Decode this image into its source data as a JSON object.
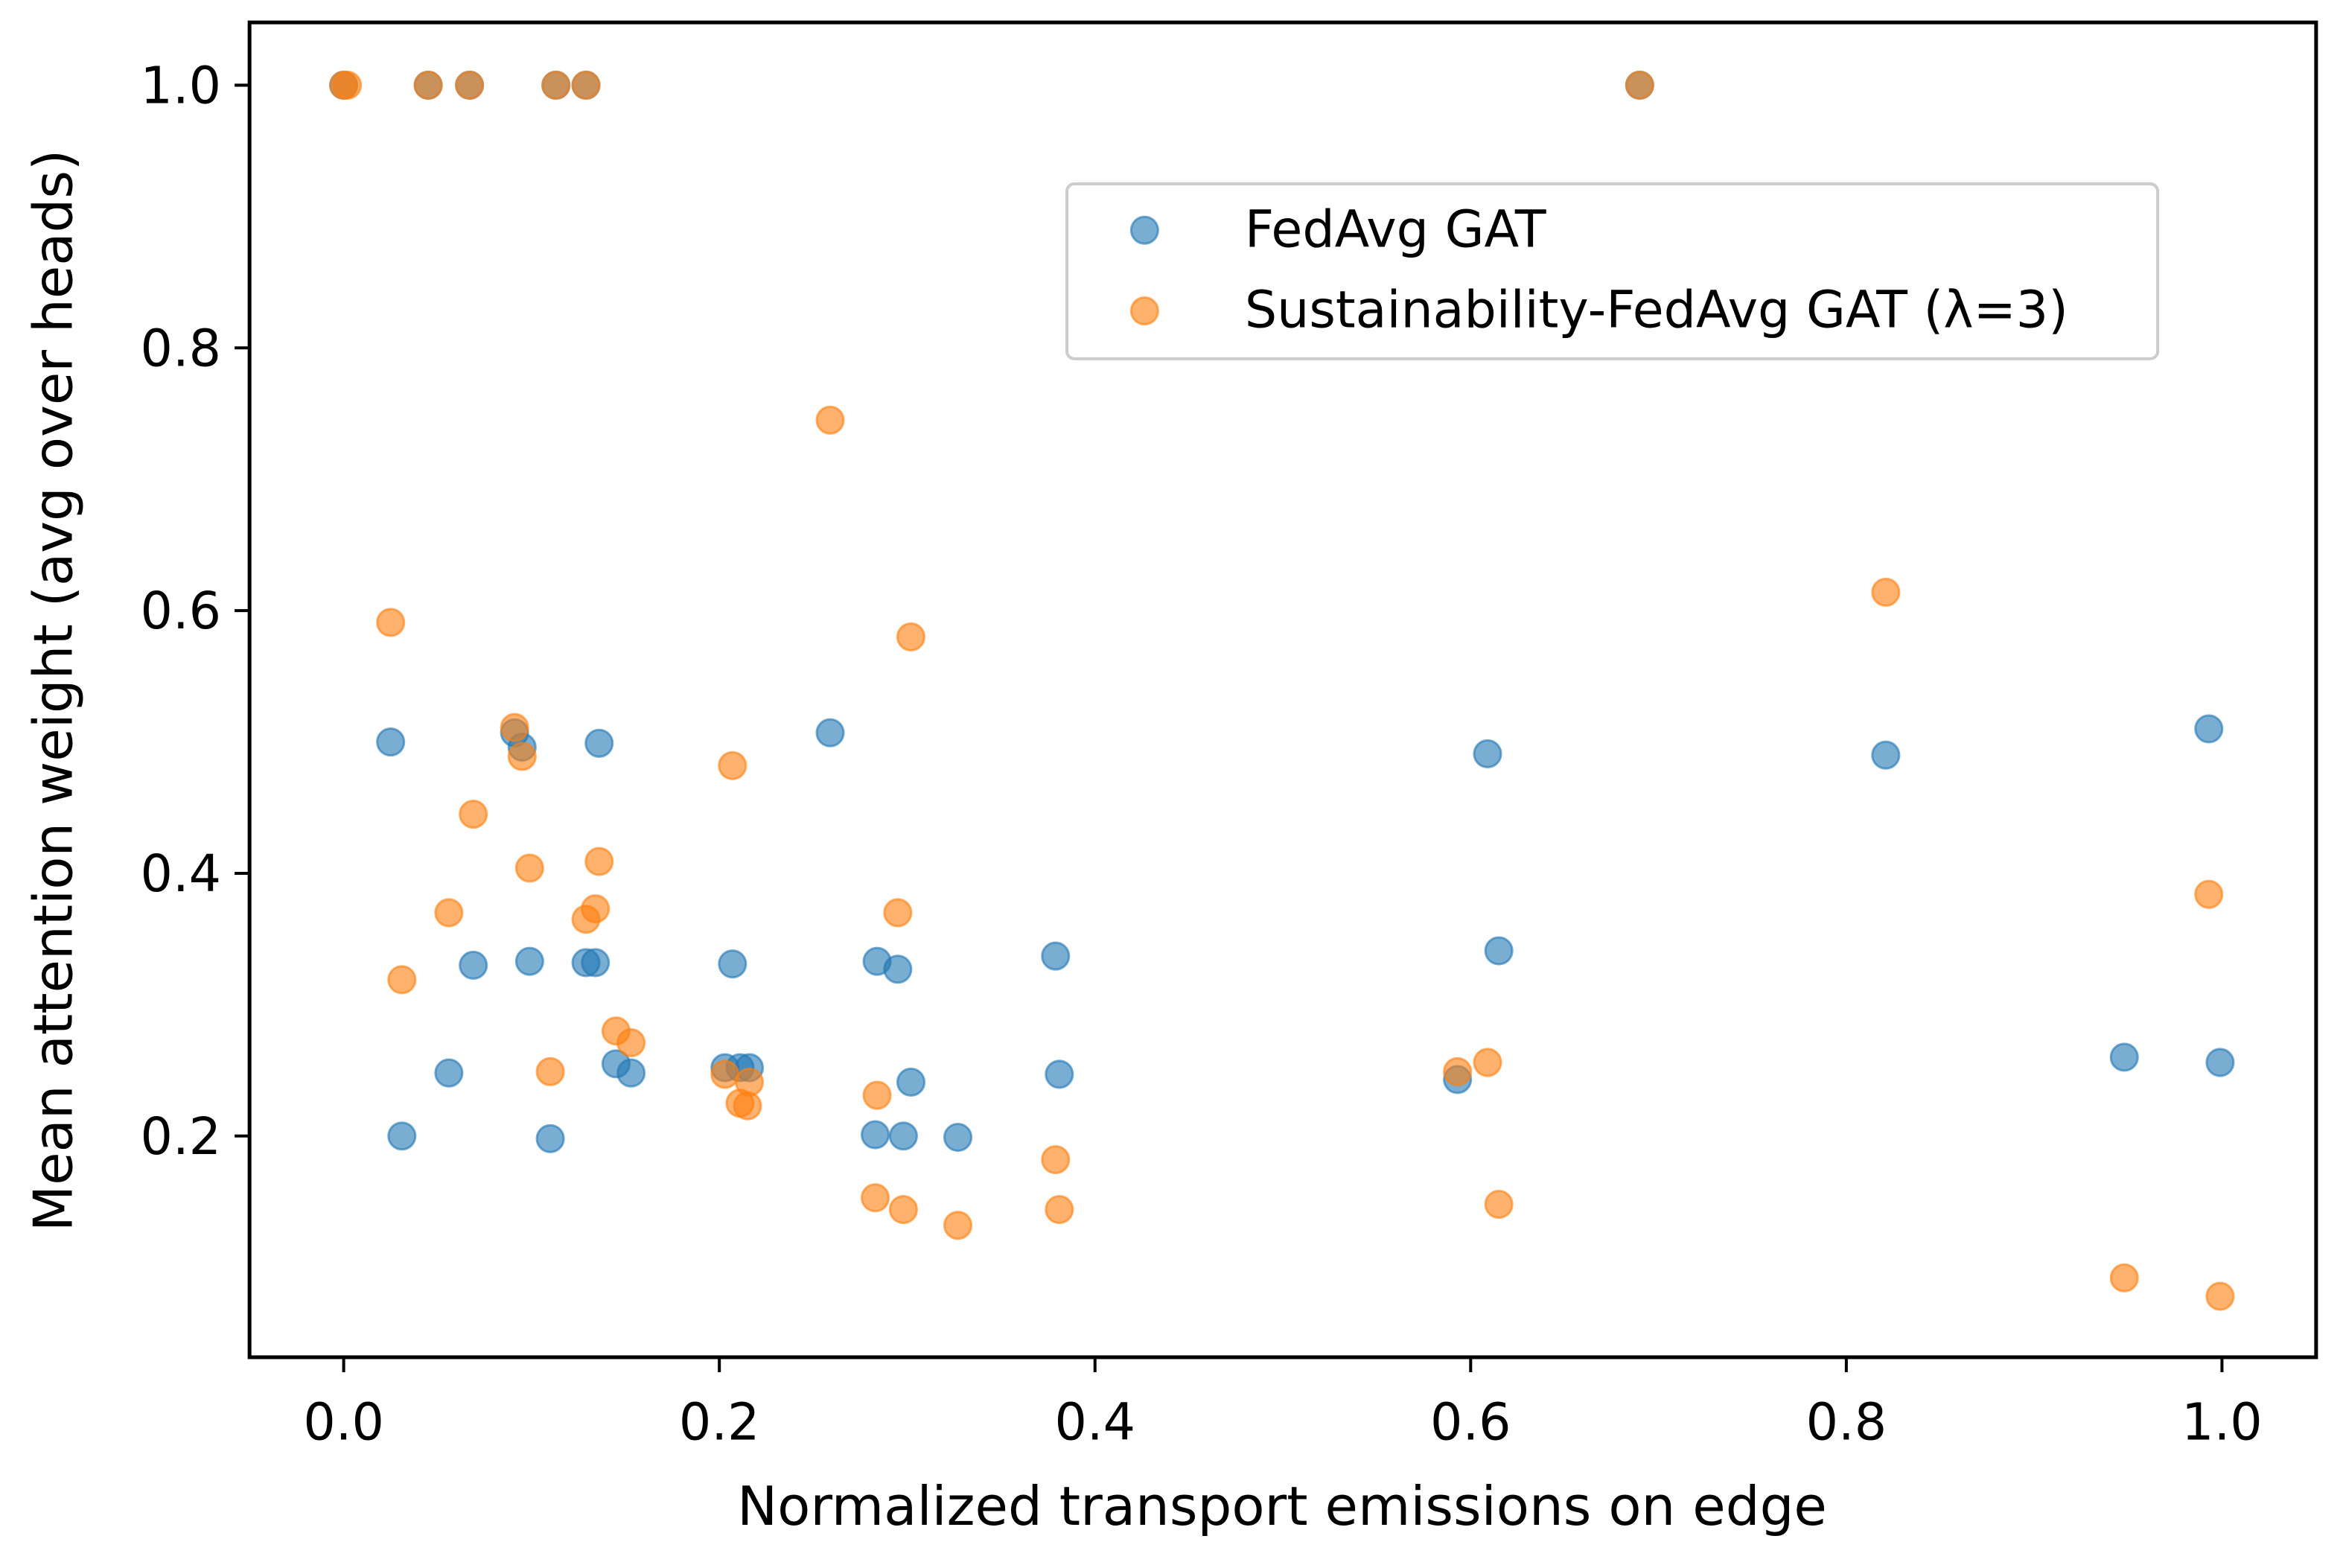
{
  "chart_data": {
    "type": "scatter",
    "title": "",
    "xlabel": "Normalized transport emissions on edge",
    "ylabel": "Mean attention weight (avg over heads)",
    "xlim": [
      -0.05,
      1.05
    ],
    "ylim": [
      0.06,
      1.048
    ],
    "xticks": [
      "0.0",
      "0.2",
      "0.4",
      "0.6",
      "0.8",
      "1.0"
    ],
    "xtick_values": [
      0,
      0.2,
      0.4,
      0.6,
      0.8,
      1.0
    ],
    "yticks": [
      "0.2",
      "0.4",
      "0.6",
      "0.8",
      "1.0"
    ],
    "ytick_values": [
      0.2,
      0.4,
      0.6,
      0.8,
      1.0
    ],
    "grid": false,
    "legend_position": "upper-right",
    "series": [
      {
        "name": "FedAvg GAT",
        "color": "#1f77b4",
        "x": [
          0.0,
          0.045,
          0.067,
          0.113,
          0.129,
          0.69,
          0.025,
          0.031,
          0.056,
          0.069,
          0.091,
          0.095,
          0.099,
          0.11,
          0.129,
          0.134,
          0.136,
          0.145,
          0.153,
          0.203,
          0.207,
          0.211,
          0.216,
          0.259,
          0.284,
          0.283,
          0.295,
          0.298,
          0.302,
          0.327,
          0.379,
          0.381,
          0.593,
          0.609,
          0.615,
          0.821,
          0.948,
          0.993,
          0.999
        ],
        "y": [
          1.0,
          1.0,
          1.0,
          1.0,
          1.0,
          1.0,
          0.5,
          0.2,
          0.248,
          0.33,
          0.507,
          0.496,
          0.333,
          0.198,
          0.332,
          0.332,
          0.499,
          0.255,
          0.248,
          0.252,
          0.331,
          0.252,
          0.252,
          0.507,
          0.333,
          0.201,
          0.327,
          0.2,
          0.241,
          0.199,
          0.337,
          0.247,
          0.243,
          0.491,
          0.341,
          0.49,
          0.26,
          0.51,
          0.256
        ]
      },
      {
        "name": "Sustainability-FedAvg GAT (λ=3)",
        "color": "#ff7f0e",
        "x": [
          0.0,
          0.002,
          0.045,
          0.067,
          0.113,
          0.129,
          0.69,
          0.025,
          0.031,
          0.056,
          0.069,
          0.091,
          0.095,
          0.099,
          0.11,
          0.129,
          0.134,
          0.136,
          0.145,
          0.153,
          0.203,
          0.207,
          0.211,
          0.216,
          0.215,
          0.259,
          0.284,
          0.283,
          0.295,
          0.298,
          0.302,
          0.327,
          0.379,
          0.381,
          0.593,
          0.609,
          0.615,
          0.821,
          0.948,
          0.993,
          0.999
        ],
        "y": [
          1.0,
          1.0,
          1.0,
          1.0,
          1.0,
          1.0,
          1.0,
          0.591,
          0.319,
          0.37,
          0.445,
          0.511,
          0.489,
          0.404,
          0.249,
          0.365,
          0.373,
          0.409,
          0.28,
          0.271,
          0.247,
          0.482,
          0.225,
          0.241,
          0.223,
          0.745,
          0.231,
          0.153,
          0.37,
          0.144,
          0.58,
          0.132,
          0.182,
          0.144,
          0.249,
          0.256,
          0.148,
          0.614,
          0.092,
          0.384,
          0.078
        ]
      }
    ]
  }
}
